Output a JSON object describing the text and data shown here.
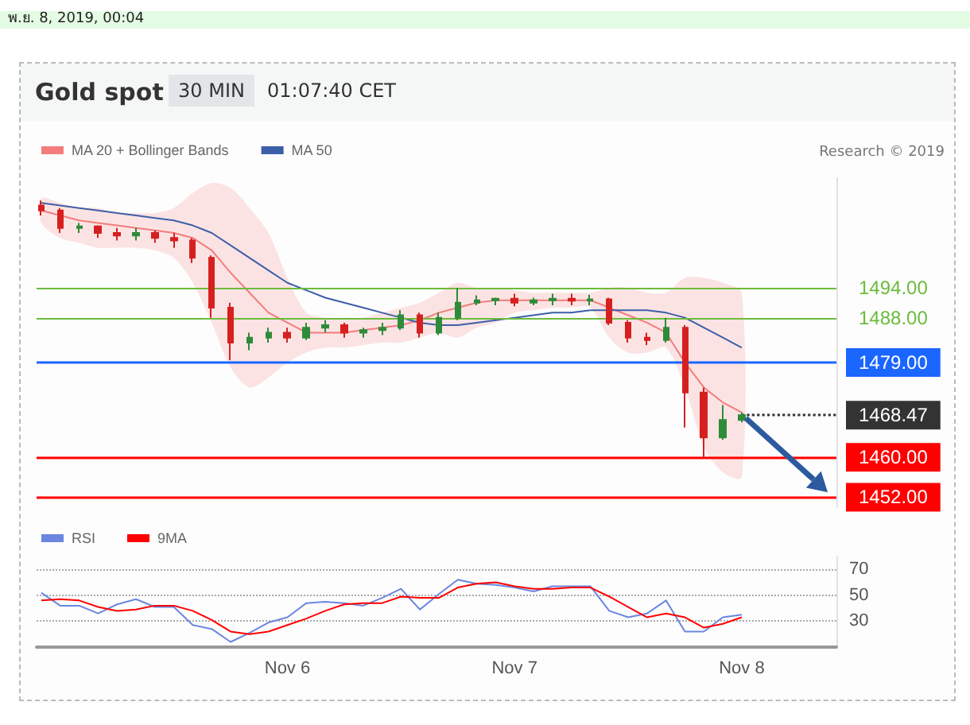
{
  "chart_data": [
    {
      "type": "candlestick",
      "title": "Gold spot",
      "subtitle": "30 MIN",
      "annotations": [
        "พ.ย. 8, 2019, 00:04",
        "01:07:40 CET",
        "Research © 2019"
      ],
      "x": [
        "2019-11-04T22:00",
        "2019-11-05T00:00",
        "2019-11-05T02:00",
        "2019-11-05T04:00",
        "2019-11-05T06:00",
        "2019-11-05T08:00",
        "2019-11-05T10:00",
        "2019-11-05T12:00",
        "2019-11-05T14:00",
        "2019-11-05T16:00",
        "2019-11-05T18:00",
        "2019-11-05T20:00",
        "2019-11-05T22:00",
        "2019-11-06T00:00",
        "2019-11-06T02:00",
        "2019-11-06T04:00",
        "2019-11-06T06:00",
        "2019-11-06T08:00",
        "2019-11-06T10:00",
        "2019-11-06T12:00",
        "2019-11-06T14:00",
        "2019-11-06T16:00",
        "2019-11-06T18:00",
        "2019-11-06T20:00",
        "2019-11-06T22:00",
        "2019-11-07T00:00",
        "2019-11-07T02:00",
        "2019-11-07T04:00",
        "2019-11-07T06:00",
        "2019-11-07T08:00",
        "2019-11-07T10:00",
        "2019-11-07T12:00",
        "2019-11-07T14:00",
        "2019-11-07T16:00",
        "2019-11-07T18:00",
        "2019-11-07T20:00",
        "2019-11-07T22:00",
        "2019-11-08T00:00"
      ],
      "ohlc": [
        [
          1510.5,
          1511.5,
          1508.5,
          1509.5
        ],
        [
          1509.5,
          1510,
          1505,
          1506
        ],
        [
          1506,
          1507,
          1505,
          1506.3
        ],
        [
          1506.3,
          1506.5,
          1504,
          1505
        ],
        [
          1505,
          1506,
          1503.5,
          1504.5
        ],
        [
          1504.5,
          1506,
          1503.5,
          1505
        ],
        [
          1505,
          1505.5,
          1503,
          1504
        ],
        [
          1504,
          1505,
          1502,
          1503.5
        ],
        [
          1503.5,
          1504,
          1499,
          1500
        ],
        [
          1500,
          1500.5,
          1488,
          1490
        ],
        [
          1490,
          1491,
          1479.5,
          1483
        ],
        [
          1483,
          1485,
          1481.5,
          1484
        ],
        [
          1484,
          1486,
          1483,
          1485
        ],
        [
          1485,
          1486,
          1483,
          1484
        ],
        [
          1484,
          1487,
          1483.5,
          1486
        ],
        [
          1486,
          1487.5,
          1485,
          1486.5
        ],
        [
          1486.5,
          1487,
          1484,
          1485
        ],
        [
          1485,
          1486,
          1484,
          1485.5
        ],
        [
          1485.5,
          1487,
          1484.5,
          1486
        ],
        [
          1486,
          1489.5,
          1485.5,
          1488.5
        ],
        [
          1488.5,
          1489,
          1484,
          1485
        ],
        [
          1485,
          1489,
          1484.5,
          1488
        ],
        [
          1488,
          1494,
          1487.5,
          1491
        ],
        [
          1491,
          1492.5,
          1490.5,
          1491.5
        ],
        [
          1491.5,
          1492,
          1490.5,
          1491.8
        ],
        [
          1491.8,
          1492.8,
          1490.3,
          1491
        ],
        [
          1491,
          1492,
          1490.5,
          1491.5
        ],
        [
          1491.5,
          1492.8,
          1490.5,
          1491.8
        ],
        [
          1491.8,
          1492.8,
          1490.5,
          1491.4
        ],
        [
          1491.4,
          1492.6,
          1490.5,
          1491.7
        ],
        [
          1491.7,
          1492,
          1486.5,
          1487
        ],
        [
          1487,
          1487.5,
          1483,
          1484
        ],
        [
          1484,
          1485,
          1482.5,
          1483.5
        ],
        [
          1483.5,
          1488,
          1483,
          1486
        ],
        [
          1486,
          1486.5,
          1466,
          1473
        ],
        [
          1473,
          1474,
          1460,
          1464
        ],
        [
          1464,
          1470.5,
          1463.5,
          1467.5
        ],
        [
          1467.5,
          1469,
          1467,
          1468.47
        ]
      ],
      "colors": [
        "#d62020",
        "#d62020",
        "#2e8b3a",
        "#d62020",
        "#d62020",
        "#2e8b3a",
        "#d62020",
        "#d62020",
        "#d62020",
        "#d62020",
        "#d62020",
        "#2e8b3a",
        "#2e8b3a",
        "#d62020",
        "#2e8b3a",
        "#2e8b3a",
        "#d62020",
        "#2e8b3a",
        "#2e8b3a",
        "#2e8b3a",
        "#d62020",
        "#2e8b3a",
        "#2e8b3a",
        "#2e8b3a",
        "#2e8b3a",
        "#d62020",
        "#2e8b3a",
        "#2e8b3a",
        "#d62020",
        "#2e8b3a",
        "#d62020",
        "#d62020",
        "#d62020",
        "#2e8b3a",
        "#d62020",
        "#d62020",
        "#2e8b3a",
        "#2e8b3a"
      ],
      "series": [
        {
          "type": "line",
          "name": "MA 20 + Bollinger Bands",
          "color": "#f47c7c",
          "values": [
            1509.5,
            1508.5,
            1507.5,
            1507,
            1506.5,
            1506,
            1505.5,
            1505,
            1504,
            1501.5,
            1497,
            1493,
            1489,
            1487,
            1485,
            1485,
            1485,
            1485.5,
            1486,
            1486.5,
            1487.5,
            1489,
            1490,
            1491,
            1491.5,
            1491.5,
            1491.5,
            1491.5,
            1491.5,
            1491.5,
            1490,
            1488.5,
            1487,
            1485,
            1479,
            1474,
            1471,
            1469
          ],
          "upper": [
            1512,
            1511,
            1510,
            1510,
            1509,
            1509,
            1509,
            1510,
            1513,
            1515,
            1514,
            1510,
            1505,
            1496,
            1489,
            1488,
            1488,
            1488,
            1489,
            1490,
            1491,
            1493,
            1495,
            1494,
            1494,
            1493.5,
            1493,
            1493,
            1493,
            1493,
            1494,
            1494,
            1493,
            1493,
            1496,
            1496,
            1495,
            1493
          ],
          "lower": [
            1507,
            1504,
            1503,
            1502,
            1502,
            1502,
            1501.5,
            1500,
            1495,
            1487,
            1478,
            1474,
            1476,
            1479,
            1481,
            1482,
            1482,
            1482.5,
            1483,
            1483,
            1484,
            1485,
            1484,
            1486,
            1487,
            1489,
            1489.5,
            1490,
            1490,
            1490,
            1484,
            1481,
            1481,
            1482,
            1474,
            1462,
            1457,
            1456
          ]
        },
        {
          "type": "line",
          "name": "MA 50",
          "color": "#3d5fa8",
          "values": [
            1511,
            1510.5,
            1510,
            1509.5,
            1509,
            1508.5,
            1508,
            1507.5,
            1506.5,
            1505,
            1502.5,
            1500,
            1497.5,
            1495,
            1493.5,
            1492,
            1491,
            1490,
            1489,
            1488,
            1487,
            1486.5,
            1486.5,
            1487,
            1487.5,
            1488,
            1488.5,
            1489,
            1489,
            1489.5,
            1489.5,
            1489.5,
            1489.5,
            1489,
            1488,
            1486,
            1484,
            1482
          ]
        }
      ],
      "xlim": [
        "2019-11-04T21:30",
        "2019-11-08T10:00"
      ],
      "ylim": [
        1450,
        1516
      ],
      "ref_lines": [
        {
          "axis": "y",
          "value": 1494,
          "label": "1494.00",
          "color": "#6cbb3c"
        },
        {
          "axis": "y",
          "value": 1488,
          "label": "1488.00",
          "color": "#6cbb3c"
        },
        {
          "axis": "y",
          "value": 1479,
          "label": "1479.00",
          "color": "#1a66ff"
        },
        {
          "axis": "y",
          "value": 1468.47,
          "label": "1468.47",
          "color": "#333333",
          "line_style": "dotted"
        },
        {
          "axis": "y",
          "value": 1460,
          "label": "1460.00",
          "color": "#ff0000"
        },
        {
          "axis": "y",
          "value": 1452,
          "label": "1452.00",
          "color": "#ff0000"
        }
      ],
      "legend": "top left",
      "grid": false,
      "tick_labels": false
    },
    {
      "type": "line",
      "x": [
        "2019-11-04T22:00",
        "2019-11-05T00:00",
        "2019-11-05T02:00",
        "2019-11-05T04:00",
        "2019-11-05T06:00",
        "2019-11-05T08:00",
        "2019-11-05T10:00",
        "2019-11-05T12:00",
        "2019-11-05T14:00",
        "2019-11-05T16:00",
        "2019-11-05T18:00",
        "2019-11-05T20:00",
        "2019-11-05T22:00",
        "2019-11-06T00:00",
        "2019-11-06T02:00",
        "2019-11-06T04:00",
        "2019-11-06T06:00",
        "2019-11-06T08:00",
        "2019-11-06T10:00",
        "2019-11-06T12:00",
        "2019-11-06T14:00",
        "2019-11-06T16:00",
        "2019-11-06T18:00",
        "2019-11-06T20:00",
        "2019-11-06T22:00",
        "2019-11-07T00:00",
        "2019-11-07T02:00",
        "2019-11-07T04:00",
        "2019-11-07T06:00",
        "2019-11-07T08:00",
        "2019-11-07T10:00",
        "2019-11-07T12:00",
        "2019-11-07T14:00",
        "2019-11-07T16:00",
        "2019-11-07T18:00",
        "2019-11-07T20:00",
        "2019-11-07T22:00",
        "2019-11-08T00:00"
      ],
      "series": [
        {
          "name": "RSI",
          "color": "#6b86e0",
          "values": [
            52,
            42,
            42,
            36,
            43,
            47,
            41,
            41,
            27,
            24,
            14,
            21,
            29,
            33,
            44,
            45,
            44,
            42,
            48,
            55,
            39,
            51,
            62,
            59,
            58,
            56,
            53,
            57,
            57,
            57,
            38,
            33,
            36,
            46,
            22,
            22,
            33,
            35
          ]
        },
        {
          "name": "9MA",
          "color": "#ff0000",
          "values": [
            46,
            47,
            46,
            41,
            38,
            39,
            42,
            42,
            38,
            31,
            22,
            20,
            22,
            27,
            32,
            38,
            43,
            44,
            44,
            49,
            48,
            48,
            56,
            59,
            60,
            57,
            55,
            55,
            56,
            56,
            49,
            41,
            33,
            36,
            33,
            25,
            28,
            33
          ]
        }
      ],
      "xlim": [
        "2019-11-04T21:30",
        "2019-11-08T10:00"
      ],
      "xticks": [
        {
          "value": "2019-11-06T00:00",
          "label": "Nov 6"
        },
        {
          "value": "2019-11-07T00:00",
          "label": "Nov 7"
        },
        {
          "value": "2019-11-08T00:00",
          "label": "Nov 8"
        }
      ],
      "ylim": [
        10,
        80
      ],
      "yticks": [
        30,
        50,
        70
      ],
      "grid": "y",
      "legend": "top left",
      "marker": "none"
    }
  ]
}
